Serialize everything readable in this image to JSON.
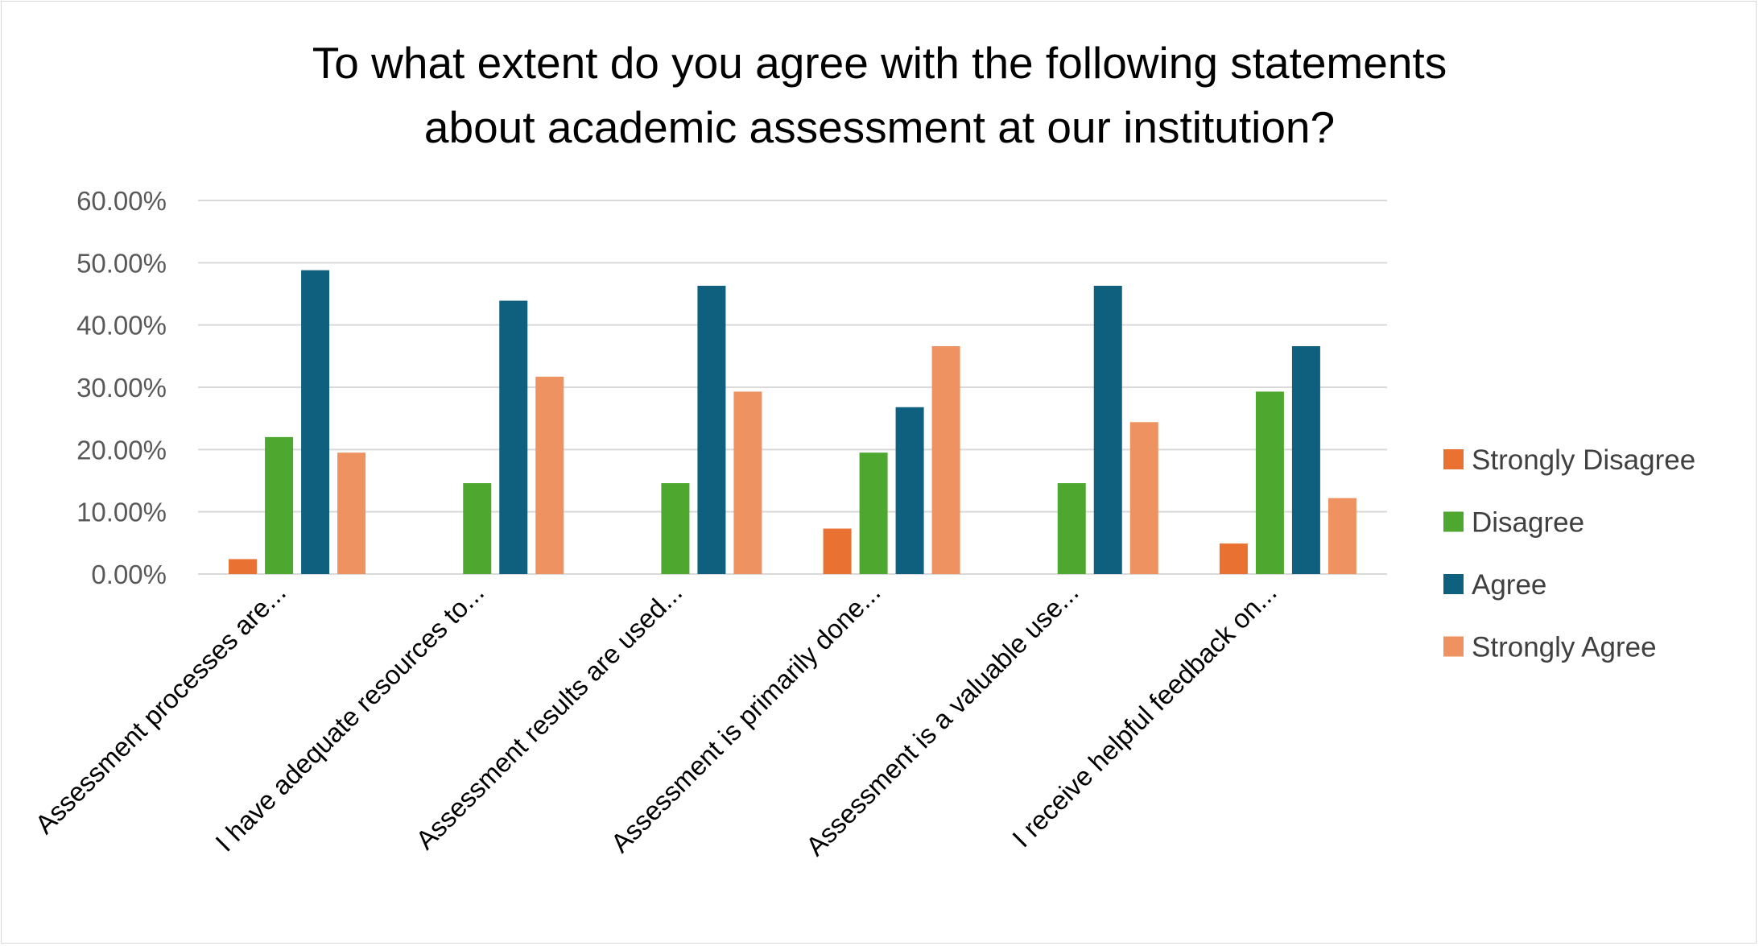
{
  "chart_data": {
    "type": "bar",
    "title_lines": [
      "To what extent do you agree with the following statements",
      "about academic assessment at our institution?"
    ],
    "categories": [
      "Assessment processes are...",
      "I have adequate resources to...",
      "Assessment results are used...",
      "Assessment is primarily done...",
      "Assessment is a valuable use...",
      "I receive helpful feedback on..."
    ],
    "series": [
      {
        "name": "Strongly Disagree",
        "color": "#e97132",
        "values": [
          0.024,
          0,
          0,
          0.073,
          0,
          0.049
        ]
      },
      {
        "name": "Disagree",
        "color": "#4ea72e",
        "values": [
          0.22,
          0.146,
          0.146,
          0.195,
          0.146,
          0.293
        ]
      },
      {
        "name": "Agree",
        "color": "#0f5f7f",
        "values": [
          0.488,
          0.439,
          0.463,
          0.268,
          0.463,
          0.366
        ]
      },
      {
        "name": "Strongly Agree",
        "color": "#ee9261",
        "values": [
          0.195,
          0.317,
          0.293,
          0.366,
          0.244,
          0.122
        ]
      }
    ],
    "yticks": [
      "0.00%",
      "10.00%",
      "20.00%",
      "30.00%",
      "40.00%",
      "50.00%",
      "60.00%"
    ],
    "ylim": [
      0,
      0.6
    ],
    "grid": true,
    "gridline_color": "#d9d9d9",
    "legend_position": "right"
  }
}
